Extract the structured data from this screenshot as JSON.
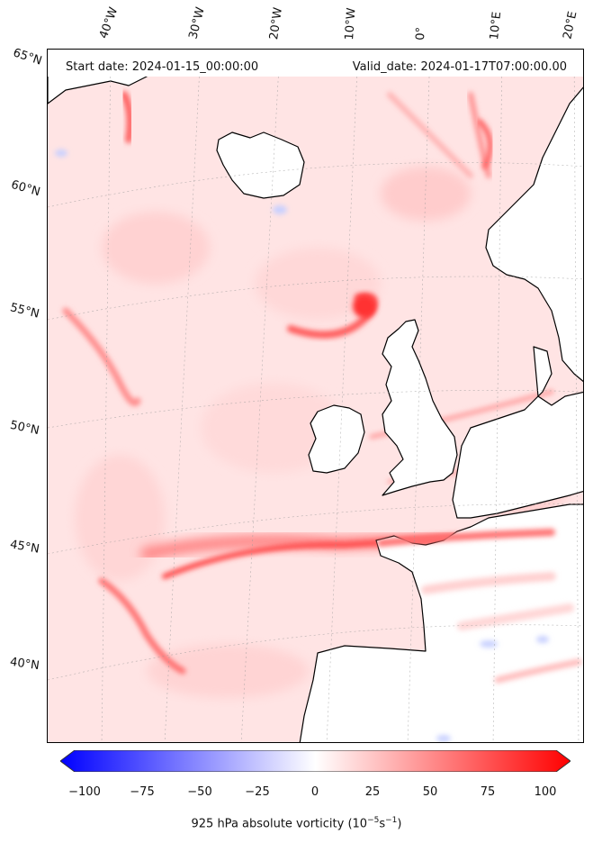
{
  "map": {
    "start_date_label": "Start date: 2024-01-15_00:00:00",
    "valid_date_label": "Valid_date: 2024-01-17T07:00:00.00",
    "longitude_labels": [
      "40°W",
      "30°W",
      "20°W",
      "10°W",
      "0°",
      "10°E",
      "20°E"
    ],
    "latitude_labels": [
      "65°N",
      "60°N",
      "55°N",
      "50°N",
      "45°N",
      "40°N"
    ],
    "land_color": "#ffffff",
    "coastline_color": "#000000",
    "high_vorticity_color": "#ff0000",
    "low_vorticity_color": "#0000ff",
    "background_vorticity_color": "#ffe6e6"
  },
  "colorbar": {
    "ticks": [
      "−100",
      "−75",
      "−50",
      "−25",
      "0",
      "25",
      "50",
      "75",
      "100"
    ],
    "label": "925 hPa absolute vorticity (10",
    "label_exp": "−5",
    "label_mid": "s",
    "label_exp2": "−1",
    "label_end": ")",
    "colormap": "bwr",
    "min": -100,
    "max": 100
  }
}
